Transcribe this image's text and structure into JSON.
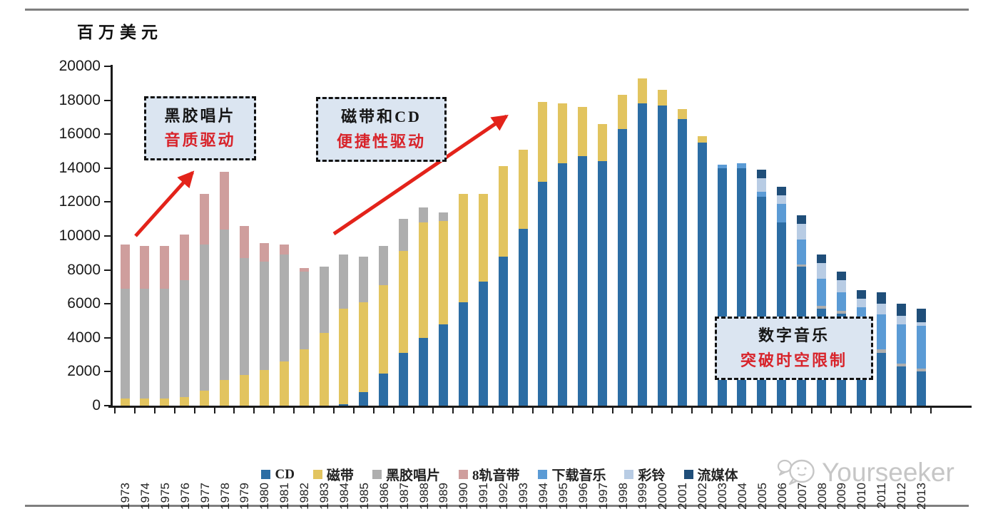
{
  "page": {
    "unit_label": "百万美元",
    "watermark_text": "Yourseeker"
  },
  "chart_data": {
    "type": "bar",
    "stacked": true,
    "title": "",
    "ylabel": "百万美元",
    "xlabel": "",
    "ylim": [
      0,
      20000
    ],
    "ytick_step": 2000,
    "yticks": [
      0,
      2000,
      4000,
      6000,
      8000,
      10000,
      12000,
      14000,
      16000,
      18000,
      20000
    ],
    "grid": false,
    "legend_position": "bottom",
    "categories": [
      "1973",
      "1974",
      "1975",
      "1976",
      "1977",
      "1978",
      "1979",
      "1980",
      "1981",
      "1982",
      "1983",
      "1984",
      "1985",
      "1986",
      "1987",
      "1988",
      "1989",
      "1990",
      "1991",
      "1992",
      "1993",
      "1994",
      "1995",
      "1996",
      "1997",
      "1998",
      "1999",
      "2000",
      "2001",
      "2002",
      "2003",
      "2004",
      "2005",
      "2006",
      "2007",
      "2008",
      "2009",
      "2010",
      "2011",
      "2012",
      "2013"
    ],
    "series": [
      {
        "name": "CD",
        "slug": "cd",
        "color": "#2c6da4",
        "values": [
          0,
          0,
          0,
          0,
          0,
          0,
          0,
          0,
          0,
          0,
          0,
          100,
          800,
          1900,
          3100,
          4000,
          4800,
          6100,
          7300,
          8800,
          10400,
          13200,
          14300,
          14700,
          14400,
          16300,
          17800,
          17700,
          16900,
          15500,
          14000,
          14000,
          12300,
          10800,
          8200,
          5700,
          5400,
          4600,
          3100,
          2300,
          2000
        ]
      },
      {
        "name": "磁带",
        "slug": "cassette",
        "color": "#e2c45f",
        "values": [
          400,
          400,
          400,
          500,
          900,
          1500,
          1800,
          2100,
          2600,
          3300,
          4300,
          5600,
          5300,
          5200,
          6000,
          6800,
          6100,
          6400,
          5200,
          5300,
          4700,
          4700,
          3500,
          2900,
          2200,
          2000,
          1500,
          900,
          600,
          400,
          0,
          0,
          0,
          0,
          0,
          0,
          0,
          0,
          0,
          0,
          0
        ]
      },
      {
        "name": "黑胶唱片",
        "slug": "vinyl",
        "color": "#aeaeae",
        "values": [
          6500,
          6500,
          6500,
          6900,
          8600,
          8900,
          6900,
          6400,
          6300,
          4600,
          3900,
          3200,
          2700,
          2300,
          1900,
          900,
          500,
          0,
          0,
          0,
          0,
          0,
          0,
          0,
          0,
          0,
          0,
          0,
          0,
          0,
          0,
          0,
          0,
          0,
          100,
          200,
          200,
          100,
          200,
          200,
          200
        ]
      },
      {
        "name": "8轨音带",
        "slug": "8track",
        "color": "#cf9e9d",
        "values": [
          2600,
          2500,
          2500,
          2700,
          3000,
          3400,
          1900,
          1100,
          600,
          200,
          0,
          0,
          0,
          0,
          0,
          0,
          0,
          0,
          0,
          0,
          0,
          0,
          0,
          0,
          0,
          0,
          0,
          0,
          0,
          0,
          0,
          0,
          0,
          0,
          0,
          0,
          0,
          0,
          0,
          0,
          0
        ]
      },
      {
        "name": "下载音乐",
        "slug": "download",
        "color": "#5b9bd5",
        "values": [
          0,
          0,
          0,
          0,
          0,
          0,
          0,
          0,
          0,
          0,
          0,
          0,
          0,
          0,
          0,
          0,
          0,
          0,
          0,
          0,
          0,
          0,
          0,
          0,
          0,
          0,
          0,
          0,
          0,
          0,
          200,
          300,
          300,
          1100,
          1500,
          1600,
          1100,
          1100,
          2100,
          2300,
          2500
        ]
      },
      {
        "name": "彩铃",
        "slug": "ringtone",
        "color": "#b8cce4",
        "values": [
          0,
          0,
          0,
          0,
          0,
          0,
          0,
          0,
          0,
          0,
          0,
          0,
          0,
          0,
          0,
          0,
          0,
          0,
          0,
          0,
          0,
          0,
          0,
          0,
          0,
          0,
          0,
          0,
          0,
          0,
          0,
          0,
          800,
          500,
          900,
          900,
          700,
          500,
          600,
          500,
          200
        ]
      },
      {
        "name": "流媒体",
        "slug": "streaming",
        "color": "#1f4e79",
        "values": [
          0,
          0,
          0,
          0,
          0,
          0,
          0,
          0,
          0,
          0,
          0,
          0,
          0,
          0,
          0,
          0,
          0,
          0,
          0,
          0,
          0,
          0,
          0,
          0,
          0,
          0,
          0,
          0,
          0,
          0,
          0,
          0,
          500,
          500,
          500,
          500,
          500,
          500,
          700,
          700,
          800
        ]
      }
    ],
    "annotations": [
      {
        "line1": "黑胶唱片",
        "line2": "音质驱动"
      },
      {
        "line1": "磁带和CD",
        "line2": "便捷性驱动"
      },
      {
        "line1": "数字音乐",
        "line2": "突破时空限制"
      }
    ],
    "annotation_text_color": "#d8232a",
    "arrow_color": "#e3231a"
  }
}
